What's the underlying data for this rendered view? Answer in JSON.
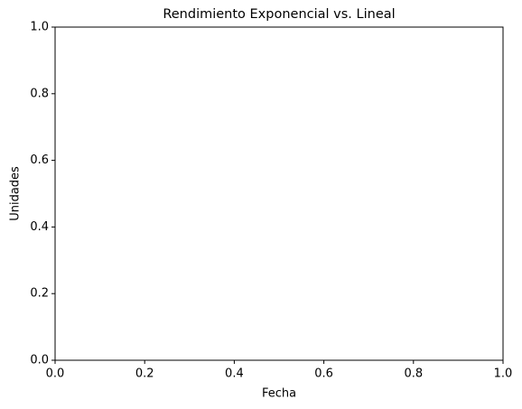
{
  "chart_data": {
    "type": "line",
    "title": "Rendimiento Exponencial vs. Lineal",
    "x_label": "Fecha",
    "y_label": "Unidades",
    "xlim": [
      0,
      1
    ],
    "ylim": [
      0,
      1
    ],
    "xticks": [
      {
        "value": 0,
        "label": "0.0"
      },
      {
        "value": 0.2,
        "label": "0.2"
      },
      {
        "value": 0.4,
        "label": "0.4"
      },
      {
        "value": 0.6,
        "label": "0.6"
      },
      {
        "value": 0.8,
        "label": "0.8"
      },
      {
        "value": 1,
        "label": "1.0"
      }
    ],
    "yticks": [
      {
        "value": 0,
        "label": "0.0"
      },
      {
        "value": 0.2,
        "label": "0.2"
      },
      {
        "value": 0.4,
        "label": "0.4"
      },
      {
        "value": 0.6,
        "label": "0.6"
      },
      {
        "value": 0.8,
        "label": "0.8"
      },
      {
        "value": 1,
        "label": "1.0"
      }
    ],
    "grid": false
  }
}
